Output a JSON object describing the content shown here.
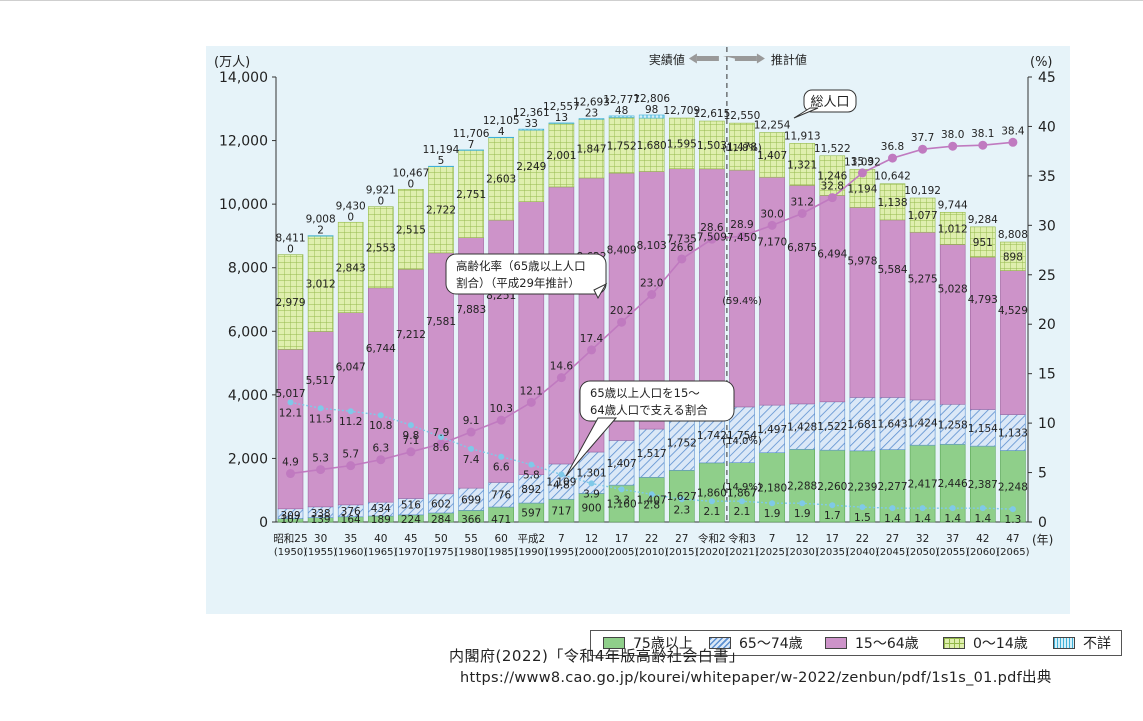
{
  "chart_data": {
    "type": "bar",
    "stacked": true,
    "left_axis_unit": "(万人)",
    "right_axis_unit": "(%)",
    "x_unit": "(年)",
    "ylim": [
      0,
      14000
    ],
    "yticks": [
      "14,000",
      "12,000",
      "10,000",
      "8,000",
      "6,000",
      "4,000",
      "2,000",
      "0"
    ],
    "y2lim": [
      0,
      45
    ],
    "y2ticks": [
      "45",
      "40",
      "35",
      "30",
      "25",
      "20",
      "15",
      "10",
      "5",
      "0"
    ],
    "categories": [
      {
        "era": "昭和25",
        "year": "(1950)"
      },
      {
        "era": "30",
        "year": "(1955)"
      },
      {
        "era": "35",
        "year": "(1960)"
      },
      {
        "era": "40",
        "year": "(1965)"
      },
      {
        "era": "45",
        "year": "(1970)"
      },
      {
        "era": "50",
        "year": "(1975)"
      },
      {
        "era": "55",
        "year": "(1980)"
      },
      {
        "era": "60",
        "year": "(1985)"
      },
      {
        "era": "平成2",
        "year": "(1990)"
      },
      {
        "era": "7",
        "year": "(1995)"
      },
      {
        "era": "12",
        "year": "(2000)"
      },
      {
        "era": "17",
        "year": "(2005)"
      },
      {
        "era": "22",
        "year": "(2010)"
      },
      {
        "era": "27",
        "year": "(2015)"
      },
      {
        "era": "令和2",
        "year": "(2020)"
      },
      {
        "era": "令和3",
        "year": "(2021)"
      },
      {
        "era": "7",
        "year": "(2025)"
      },
      {
        "era": "12",
        "year": "(2030)"
      },
      {
        "era": "17",
        "year": "(2035)"
      },
      {
        "era": "22",
        "year": "(2040)"
      },
      {
        "era": "27",
        "year": "(2045)"
      },
      {
        "era": "32",
        "year": "(2050)"
      },
      {
        "era": "37",
        "year": "(2055)"
      },
      {
        "era": "42",
        "year": "(2060)"
      },
      {
        "era": "47",
        "year": "(2065)"
      }
    ],
    "series": [
      {
        "name": "75歳以上",
        "color": "#8fcf8a",
        "values": [
          107,
          139,
          164,
          189,
          224,
          284,
          366,
          471,
          597,
          717,
          900,
          1160,
          1407,
          1627,
          1860,
          1867,
          2180,
          2288,
          2260,
          2239,
          2277,
          2417,
          2446,
          2387,
          2248
        ]
      },
      {
        "name": "65～74歳",
        "color": "#bcd3ee",
        "values": [
          309,
          338,
          376,
          434,
          516,
          602,
          699,
          776,
          892,
          1109,
          1301,
          1407,
          1517,
          1752,
          1742,
          1754,
          1497,
          1428,
          1522,
          1681,
          1643,
          1424,
          1258,
          1154,
          1133
        ]
      },
      {
        "name": "15～64歳",
        "color": "#cd93c9",
        "values": [
          5017,
          5517,
          6047,
          6744,
          7212,
          7581,
          7883,
          8251,
          8590,
          8716,
          8622,
          8409,
          8103,
          7735,
          7509,
          7450,
          7170,
          6875,
          6494,
          5978,
          5584,
          5275,
          5028,
          4793,
          4529
        ]
      },
      {
        "name": "0～14歳",
        "color": "#d7eaa0",
        "values": [
          2979,
          3012,
          2843,
          2553,
          2515,
          2722,
          2751,
          2603,
          2249,
          2001,
          1847,
          1752,
          1680,
          1595,
          1503,
          1478,
          1407,
          1321,
          1246,
          1194,
          1138,
          1077,
          1012,
          951,
          898
        ]
      },
      {
        "name": "不詳",
        "color": "#a8dff0",
        "values": [
          0,
          2,
          0,
          0,
          0,
          5,
          7,
          4,
          33,
          13,
          23,
          48,
          98,
          0,
          0,
          0,
          0,
          0,
          0,
          0,
          0,
          0,
          0,
          0,
          0
        ]
      }
    ],
    "label_texts": {
      "75歳以上": [
        "107",
        "139",
        "164",
        "189",
        "224",
        "284",
        "366",
        "471",
        "597",
        "717",
        "900",
        "1,160",
        "1,407",
        "1,627",
        "1,860",
        "1,867",
        "2,180",
        "2,288",
        "2,260",
        "2,239",
        "2,277",
        "2,417",
        "2,446",
        "2,387",
        "2,248"
      ],
      "65～74歳": [
        "309",
        "338",
        "376",
        "434",
        "516",
        "602",
        "699",
        "776",
        "892",
        "1,109",
        "1,301",
        "1,407",
        "1,517",
        "1,752",
        "1,742",
        "1,754",
        "1,497",
        "1,428",
        "1,522",
        "1,681",
        "1,643",
        "1,424",
        "1,258",
        "1,154",
        "1,133"
      ],
      "15～64歳": [
        "5,017",
        "5,517",
        "6,047",
        "6,744",
        "7,212",
        "7,581",
        "7,883",
        "8,251",
        "8,590",
        "8,716",
        "8,622",
        "8,409",
        "8,103",
        "7,735",
        "7,509",
        "7,450",
        "7,170",
        "6,875",
        "6,494",
        "5,978",
        "5,584",
        "5,275",
        "5,028",
        "4,793",
        "4,529"
      ],
      "0～14歳": [
        "2,979",
        "3,012",
        "2,843",
        "2,553",
        "2,515",
        "2,722",
        "2,751",
        "2,603",
        "2,249",
        "2,001",
        "1,847",
        "1,752",
        "1,680",
        "1,595",
        "1,503",
        "1,478",
        "1,407",
        "1,321",
        "1,246",
        "1,194",
        "1,138",
        "1,077",
        "1,012",
        "951",
        "898"
      ],
      "不詳": [
        "0",
        "2",
        "0",
        "0",
        "0",
        "5",
        "7",
        "4",
        "33",
        "13",
        "23",
        "48",
        "98",
        "",
        "",
        "",
        "",
        "",
        "",
        "",
        "",
        "",
        "",
        "",
        ""
      ]
    },
    "totals": [
      "8,411",
      "9,008",
      "9,430",
      "9,921",
      "10,467",
      "11,194",
      "11,706",
      "12,105",
      "12,361",
      "12,557",
      "12,693",
      "12,777",
      "12,806",
      "12,709",
      "12,615",
      "12,550",
      "12,254",
      "11,913",
      "11,522",
      "11,092",
      "10,642",
      "10,192",
      "9,744",
      "9,284",
      "8,808"
    ],
    "pct_sub_labels": {
      "15": "(59.4%)",
      "15b": "(14.0%)",
      "15c": "(14.9%)",
      "15d": "(11.8%)"
    },
    "aging_rate": {
      "name": "高齢化率（65歳以上人口割合）（平成29年推計）",
      "color": "#c07ac0",
      "values": [
        4.9,
        5.3,
        5.7,
        6.3,
        7.1,
        7.9,
        9.1,
        10.3,
        12.1,
        14.6,
        17.4,
        20.2,
        23.0,
        26.6,
        28.6,
        28.9,
        30.0,
        31.2,
        32.8,
        35.3,
        36.8,
        37.7,
        38.0,
        38.1,
        38.4
      ],
      "labels": [
        "4.9",
        "5.3",
        "5.7",
        "6.3",
        "7.1",
        "7.9",
        "9.1",
        "10.3",
        "12.1",
        "14.6",
        "17.4",
        "20.2",
        "23.0",
        "26.6",
        "28.6",
        "28.9",
        "30.0",
        "31.2",
        "32.8",
        "35.3",
        "36.8",
        "37.7",
        "38.0",
        "38.1",
        "38.4"
      ]
    },
    "support_ratio": {
      "name": "65歳以上人口を15～64歳人口で支える割合",
      "color": "#7fc9e8",
      "values": [
        12.1,
        11.5,
        11.2,
        10.8,
        9.8,
        8.6,
        7.4,
        6.6,
        5.8,
        4.8,
        3.9,
        3.3,
        2.8,
        2.3,
        2.1,
        2.1,
        1.9,
        1.9,
        1.7,
        1.5,
        1.4,
        1.4,
        1.4,
        1.4,
        1.3
      ],
      "labels": [
        "12.1",
        "11.5",
        "11.2",
        "10.8",
        "9.8",
        "8.6",
        "7.4",
        "6.6",
        "5.8",
        "4.8",
        "3.9",
        "3.3",
        "2.8",
        "2.3",
        "2.1",
        "2.1",
        "1.9",
        "1.9",
        "1.7",
        "1.5",
        "1.4",
        "1.4",
        "1.4",
        "1.4",
        "1.3"
      ]
    },
    "annotations": {
      "actual": "実績値",
      "projected": "推計値",
      "total_pop": "総人口",
      "aging_line1": "高齢化率（65歳以上人口",
      "aging_line2": "割合）（平成29年推計）",
      "support_line1": "65歳以上人口を15～",
      "support_line2": "64歳人口で支える割合",
      "r3_pct1": "(11.8%)",
      "r3_pct2": "(59.4%)",
      "r3_pct3": "(14.0%)",
      "r3_pct4": "(14.9%)"
    },
    "legend_position": "bottom"
  },
  "source_text": "内閣府(2022)「令和4年版高齢社会白書」",
  "url_text": "https://www8.cao.go.jp/kourei/whitepaper/w-2022/zenbun/pdf/1s1s_01.pdf出典"
}
